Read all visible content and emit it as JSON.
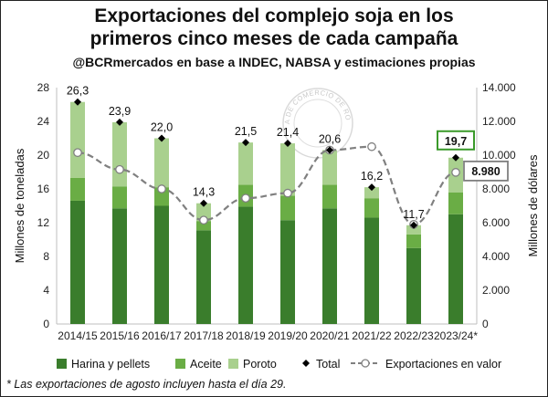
{
  "title_line1": "Exportaciones del complejo soja en los",
  "title_line2": "primeros cinco meses de cada campaña",
  "subtitle": "@BCRmercados en base a INDEC, NABSA y estimaciones propias",
  "footnote": "* Las exportaciones de agosto incluyen hasta el día 29.",
  "watermark_text": "BOLSA DE COMERCIO DE ROSARIO",
  "chart_data": {
    "type": "bar",
    "stacked": true,
    "categories": [
      "2014/15",
      "2015/16",
      "2016/17",
      "2017/18",
      "2018/19",
      "2019/20",
      "2020/21",
      "2021/22",
      "2022/23",
      "2023/24*"
    ],
    "series": [
      {
        "name": "Harina y pellets",
        "color": "#3a7d2c",
        "values": [
          14.6,
          13.7,
          14.0,
          11.1,
          13.9,
          12.3,
          13.7,
          12.6,
          9.0,
          13.0
        ]
      },
      {
        "name": "Aceite",
        "color": "#6aad45",
        "values": [
          2.7,
          2.6,
          2.2,
          1.1,
          2.6,
          2.9,
          2.8,
          2.3,
          1.6,
          2.6
        ]
      },
      {
        "name": "Poroto",
        "color": "#a9d08e",
        "values": [
          9.0,
          7.6,
          5.8,
          2.1,
          5.0,
          6.2,
          4.1,
          1.3,
          1.1,
          4.1
        ]
      }
    ],
    "totals": {
      "name": "Total",
      "values": [
        26.3,
        23.9,
        22.0,
        14.3,
        21.5,
        21.4,
        20.6,
        16.2,
        11.7,
        19.7
      ],
      "labels": [
        "26,3",
        "23,9",
        "22,0",
        "14,3",
        "21,5",
        "21,4",
        "20,6",
        "16,2",
        "11,7",
        "19,7"
      ]
    },
    "value_series": {
      "name": "Exportaciones en valor",
      "axis": "right",
      "values": [
        10150,
        9150,
        8000,
        6150,
        7450,
        7750,
        10300,
        10500,
        5900,
        8980
      ],
      "highlight_label": "8.980"
    },
    "y_left": {
      "label": "Millones de toneladas",
      "min": 0,
      "max": 28,
      "ticks": [
        0,
        4,
        8,
        12,
        16,
        20,
        24,
        28
      ]
    },
    "y_right": {
      "label": "Millones de dólares",
      "min": 0,
      "max": 14000,
      "ticks": [
        0,
        2000,
        4000,
        6000,
        8000,
        10000,
        12000,
        14000
      ],
      "tick_labels": [
        "0",
        "2.000",
        "4.000",
        "6.000",
        "8.000",
        "10.000",
        "12.000",
        "14.000"
      ]
    },
    "grid": false,
    "legend_position": "bottom",
    "legend": [
      {
        "name": "Harina y pellets",
        "kind": "box",
        "color": "#3a7d2c"
      },
      {
        "name": "Aceite",
        "kind": "box",
        "color": "#6aad45"
      },
      {
        "name": "Poroto",
        "kind": "box",
        "color": "#a9d08e"
      },
      {
        "name": "Total",
        "kind": "diamond",
        "color": "#000000"
      },
      {
        "name": "Exportaciones en valor",
        "kind": "dash-circle",
        "color": "#808080"
      }
    ]
  }
}
